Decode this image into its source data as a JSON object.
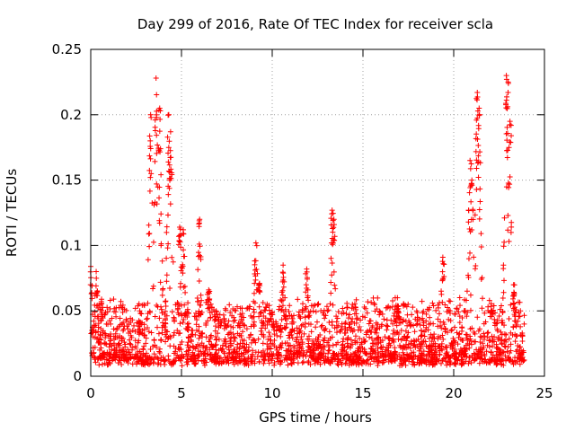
{
  "chart_data": {
    "type": "scatter",
    "title": "Day 299 of 2016, Rate Of TEC Index for receiver scla",
    "xlabel": "GPS time / hours",
    "ylabel": "ROTI / TECUs",
    "xlim": [
      0,
      25
    ],
    "ylim": [
      0,
      0.25
    ],
    "xticks": [
      0,
      5,
      10,
      15,
      20,
      25
    ],
    "xtick_labels": [
      "0",
      "5",
      "10",
      "15",
      "20",
      "25"
    ],
    "yticks": [
      0,
      0.05,
      0.1,
      0.15,
      0.2,
      0.25
    ],
    "ytick_labels": [
      "0",
      "0.05",
      "0.1",
      "0.15",
      "0.2",
      "0.25"
    ],
    "grid": true,
    "marker": "+",
    "color": "#ff0000",
    "data_range_x": [
      0,
      23.9
    ],
    "peaks": [
      {
        "x": 0.0,
        "y": 0.084
      },
      {
        "x": 0.3,
        "y": 0.08
      },
      {
        "x": 2.7,
        "y": 0.05
      },
      {
        "x": 3.3,
        "y": 0.2
      },
      {
        "x": 3.6,
        "y": 0.228
      },
      {
        "x": 3.8,
        "y": 0.205
      },
      {
        "x": 4.3,
        "y": 0.2
      },
      {
        "x": 4.4,
        "y": 0.187
      },
      {
        "x": 4.9,
        "y": 0.114
      },
      {
        "x": 5.1,
        "y": 0.112
      },
      {
        "x": 6.0,
        "y": 0.12
      },
      {
        "x": 6.5,
        "y": 0.066
      },
      {
        "x": 9.1,
        "y": 0.102
      },
      {
        "x": 9.3,
        "y": 0.071
      },
      {
        "x": 10.6,
        "y": 0.085
      },
      {
        "x": 11.9,
        "y": 0.082
      },
      {
        "x": 13.3,
        "y": 0.127
      },
      {
        "x": 13.4,
        "y": 0.12
      },
      {
        "x": 16.9,
        "y": 0.06
      },
      {
        "x": 19.4,
        "y": 0.091
      },
      {
        "x": 20.9,
        "y": 0.165
      },
      {
        "x": 21.0,
        "y": 0.15
      },
      {
        "x": 21.3,
        "y": 0.217
      },
      {
        "x": 21.4,
        "y": 0.205
      },
      {
        "x": 22.9,
        "y": 0.23
      },
      {
        "x": 23.0,
        "y": 0.225
      },
      {
        "x": 23.1,
        "y": 0.195
      },
      {
        "x": 23.3,
        "y": 0.07
      }
    ]
  }
}
